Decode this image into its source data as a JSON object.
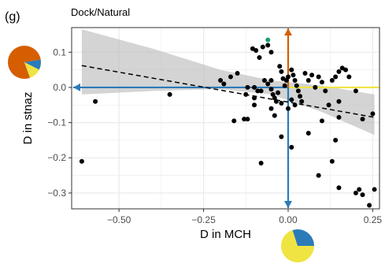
{
  "panel_label": "(g)",
  "chart_data": {
    "type": "scatter",
    "title": "Dock/Natural",
    "xlabel": "D in MCH",
    "ylabel": "D in stnaz",
    "xlim": [
      -0.64,
      0.27
    ],
    "ylim": [
      -0.345,
      0.17
    ],
    "xticks": [
      -0.5,
      -0.25,
      0.0,
      0.25
    ],
    "xtick_labels": [
      "−0.50",
      "−0.25",
      "0.00",
      "0.25"
    ],
    "yticks": [
      -0.3,
      -0.2,
      -0.1,
      0.0,
      0.1
    ],
    "ytick_labels": [
      "−0.3",
      "−0.2",
      "−0.1",
      "0.0",
      "0.1"
    ],
    "grid": true,
    "points": [
      {
        "x": -0.61,
        "y": -0.21
      },
      {
        "x": -0.57,
        "y": -0.04
      },
      {
        "x": -0.35,
        "y": -0.02
      },
      {
        "x": -0.2,
        "y": 0.02
      },
      {
        "x": -0.19,
        "y": 0.01
      },
      {
        "x": -0.17,
        "y": 0.03
      },
      {
        "x": -0.15,
        "y": 0.04
      },
      {
        "x": -0.16,
        "y": -0.095
      },
      {
        "x": -0.13,
        "y": -0.09
      },
      {
        "x": -0.12,
        "y": -0.09
      },
      {
        "x": -0.125,
        "y": -0.02
      },
      {
        "x": -0.12,
        "y": 0.0
      },
      {
        "x": -0.1,
        "y": 0.0
      },
      {
        "x": -0.1,
        "y": -0.03
      },
      {
        "x": -0.09,
        "y": -0.01
      },
      {
        "x": -0.08,
        "y": -0.01
      },
      {
        "x": -0.105,
        "y": 0.11
      },
      {
        "x": -0.095,
        "y": 0.105
      },
      {
        "x": -0.085,
        "y": 0.085
      },
      {
        "x": -0.075,
        "y": 0.115
      },
      {
        "x": -0.06,
        "y": 0.12
      },
      {
        "x": -0.05,
        "y": 0.1
      },
      {
        "x": -0.07,
        "y": 0.02
      },
      {
        "x": -0.06,
        "y": 0.01
      },
      {
        "x": -0.05,
        "y": 0.02
      },
      {
        "x": -0.05,
        "y": -0.005
      },
      {
        "x": -0.045,
        "y": -0.02
      },
      {
        "x": -0.04,
        "y": -0.03
      },
      {
        "x": -0.035,
        "y": -0.04
      },
      {
        "x": -0.03,
        "y": -0.015
      },
      {
        "x": -0.025,
        "y": 0.06
      },
      {
        "x": -0.02,
        "y": 0.045
      },
      {
        "x": -0.015,
        "y": 0.025
      },
      {
        "x": -0.01,
        "y": 0.005
      },
      {
        "x": -0.005,
        "y": 0.02
      },
      {
        "x": 0.0,
        "y": 0.03
      },
      {
        "x": 0.01,
        "y": 0.05
      },
      {
        "x": 0.015,
        "y": 0.035
      },
      {
        "x": 0.02,
        "y": 0.02
      },
      {
        "x": 0.025,
        "y": 0.005
      },
      {
        "x": 0.03,
        "y": -0.01
      },
      {
        "x": 0.035,
        "y": -0.025
      },
      {
        "x": -0.1,
        "y": -0.05
      },
      {
        "x": -0.05,
        "y": -0.06
      },
      {
        "x": -0.04,
        "y": -0.08
      },
      {
        "x": -0.02,
        "y": -0.045
      },
      {
        "x": 0.0,
        "y": -0.06
      },
      {
        "x": 0.01,
        "y": -0.035
      },
      {
        "x": 0.02,
        "y": -0.05
      },
      {
        "x": 0.04,
        "y": -0.04
      },
      {
        "x": 0.05,
        "y": 0.04
      },
      {
        "x": 0.06,
        "y": 0.02
      },
      {
        "x": 0.07,
        "y": 0.035
      },
      {
        "x": 0.08,
        "y": 0.0
      },
      {
        "x": 0.09,
        "y": 0.03
      },
      {
        "x": 0.1,
        "y": 0.015
      },
      {
        "x": 0.11,
        "y": -0.01
      },
      {
        "x": 0.12,
        "y": -0.05
      },
      {
        "x": 0.13,
        "y": 0.02
      },
      {
        "x": 0.14,
        "y": 0.03
      },
      {
        "x": 0.15,
        "y": 0.045
      },
      {
        "x": 0.16,
        "y": 0.055
      },
      {
        "x": 0.17,
        "y": 0.05
      },
      {
        "x": 0.18,
        "y": 0.03
      },
      {
        "x": 0.2,
        "y": -0.01
      },
      {
        "x": 0.22,
        "y": -0.09
      },
      {
        "x": 0.25,
        "y": -0.075
      },
      {
        "x": 0.1,
        "y": -0.095
      },
      {
        "x": 0.15,
        "y": -0.04
      },
      {
        "x": 0.15,
        "y": -0.085
      },
      {
        "x": -0.02,
        "y": -0.14
      },
      {
        "x": 0.01,
        "y": -0.17
      },
      {
        "x": -0.08,
        "y": -0.215
      },
      {
        "x": 0.06,
        "y": -0.13
      },
      {
        "x": 0.09,
        "y": -0.25
      },
      {
        "x": 0.13,
        "y": -0.21
      },
      {
        "x": 0.14,
        "y": -0.15
      },
      {
        "x": 0.15,
        "y": -0.285
      },
      {
        "x": 0.2,
        "y": -0.3
      },
      {
        "x": 0.21,
        "y": -0.29
      },
      {
        "x": 0.22,
        "y": -0.305
      },
      {
        "x": 0.24,
        "y": -0.335
      },
      {
        "x": 0.255,
        "y": -0.29
      },
      {
        "x": -0.06,
        "y": 0.135,
        "color": "#1b9e77"
      }
    ],
    "trend_line": {
      "x": [
        -0.61,
        0.255
      ],
      "y": [
        0.062,
        -0.085
      ],
      "style": "dashed"
    },
    "confidence_band": {
      "x": [
        -0.61,
        -0.4,
        -0.2,
        -0.05,
        0.1,
        0.255
      ],
      "lower": [
        -0.02,
        -0.01,
        -0.005,
        -0.02,
        -0.07,
        -0.135
      ],
      "upper": [
        0.165,
        0.11,
        0.05,
        0.02,
        0.005,
        -0.02
      ]
    },
    "reference_arrows": [
      {
        "direction": "left",
        "color": "#2b7bb9"
      },
      {
        "direction": "right",
        "color": "#f0e442"
      },
      {
        "direction": "up",
        "color": "#d55e00"
      },
      {
        "direction": "down",
        "color": "#2b7bb9"
      }
    ],
    "pie_y": {
      "slices": [
        0.78,
        0.1,
        0.12
      ],
      "colors": [
        "#d55e00",
        "#2b7bb9",
        "#f0e442"
      ]
    },
    "pie_x": {
      "slices": [
        0.7,
        0.3
      ],
      "colors": [
        "#f0e442",
        "#2b7bb9"
      ]
    }
  },
  "colors": {
    "panel_bg": "#ffffff",
    "grid": "#ebebeb",
    "border": "#333333",
    "point": "#000000",
    "band": "#bdbdbd"
  }
}
